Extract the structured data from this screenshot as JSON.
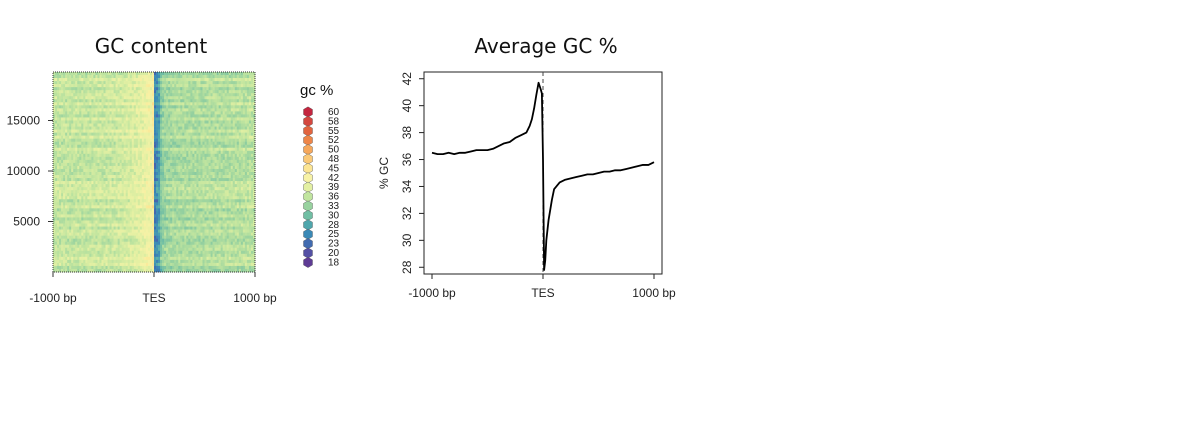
{
  "chart_data": [
    {
      "type": "heatmap",
      "title": "GC content",
      "x_tick_labels": [
        "-1000 bp",
        "TES",
        "1000 bp"
      ],
      "x_ticks": [
        -1000,
        0,
        1000
      ],
      "xlim": [
        -1000,
        1000
      ],
      "y_ticks": [
        5000,
        10000,
        15000
      ],
      "y_tick_labels": [
        "5000",
        "10000",
        "15000"
      ],
      "ylim": [
        0,
        19800
      ],
      "rows": 19800,
      "color_scale": {
        "title": "gc %",
        "labels": [
          "60",
          "58",
          "55",
          "52",
          "50",
          "48",
          "45",
          "42",
          "39",
          "36",
          "33",
          "30",
          "28",
          "25",
          "23",
          "20",
          "18"
        ],
        "values": [
          60,
          58,
          55,
          52,
          50,
          48,
          45,
          42,
          39,
          36,
          33,
          30,
          28,
          25,
          23,
          20,
          18
        ],
        "colors": [
          "#c4263f",
          "#d4473f",
          "#e2643f",
          "#ee8548",
          "#f6a75b",
          "#fbc977",
          "#fce593",
          "#f7f2a6",
          "#e3f0a3",
          "#c1e59f",
          "#98d29f",
          "#70bea3",
          "#4ea6ac",
          "#3a89b6",
          "#416bb0",
          "#5450a4",
          "#5e3b94"
        ]
      },
      "profile_gc_by_position": {
        "x": [
          -1000,
          -800,
          -600,
          -400,
          -200,
          -100,
          -50,
          -20,
          0,
          10,
          50,
          100,
          200,
          300,
          500,
          700,
          900,
          1000
        ],
        "gc": [
          36.5,
          36.5,
          36.8,
          37.0,
          38.5,
          40.0,
          41.5,
          40.5,
          36.0,
          27.8,
          30.5,
          33.5,
          34.5,
          34.7,
          35.0,
          35.2,
          35.6,
          35.8
        ]
      }
    },
    {
      "type": "line",
      "title": "Average GC %",
      "xlabel": "",
      "ylabel": "% GC",
      "x_tick_labels": [
        "-1000 bp",
        "TES",
        "1000 bp"
      ],
      "x_ticks": [
        -1000,
        0,
        1000
      ],
      "xlim": [
        -1000,
        1000
      ],
      "y_ticks": [
        28,
        30,
        32,
        34,
        36,
        38,
        40,
        42
      ],
      "ylim": [
        27.5,
        42.5
      ],
      "vline_x": 0,
      "series": [
        {
          "x": [
            -1000,
            -950,
            -900,
            -850,
            -800,
            -750,
            -700,
            -650,
            -600,
            -550,
            -500,
            -450,
            -400,
            -350,
            -300,
            -250,
            -200,
            -150,
            -120,
            -100,
            -80,
            -60,
            -40,
            -20,
            -10,
            0,
            10,
            20,
            30,
            50,
            80,
            100,
            150,
            200,
            250,
            300,
            350,
            400,
            450,
            500,
            550,
            600,
            650,
            700,
            750,
            800,
            850,
            900,
            950,
            1000
          ],
          "y": [
            36.5,
            36.4,
            36.4,
            36.5,
            36.4,
            36.5,
            36.5,
            36.6,
            36.7,
            36.7,
            36.7,
            36.8,
            37.0,
            37.2,
            37.3,
            37.6,
            37.8,
            38.0,
            38.5,
            39.0,
            39.8,
            40.8,
            41.7,
            41.2,
            40.9,
            36.0,
            27.8,
            28.5,
            30.0,
            31.5,
            33.0,
            33.8,
            34.3,
            34.5,
            34.6,
            34.7,
            34.8,
            34.9,
            34.9,
            35.0,
            35.1,
            35.1,
            35.2,
            35.2,
            35.3,
            35.4,
            35.5,
            35.6,
            35.6,
            35.8
          ]
        }
      ]
    }
  ]
}
